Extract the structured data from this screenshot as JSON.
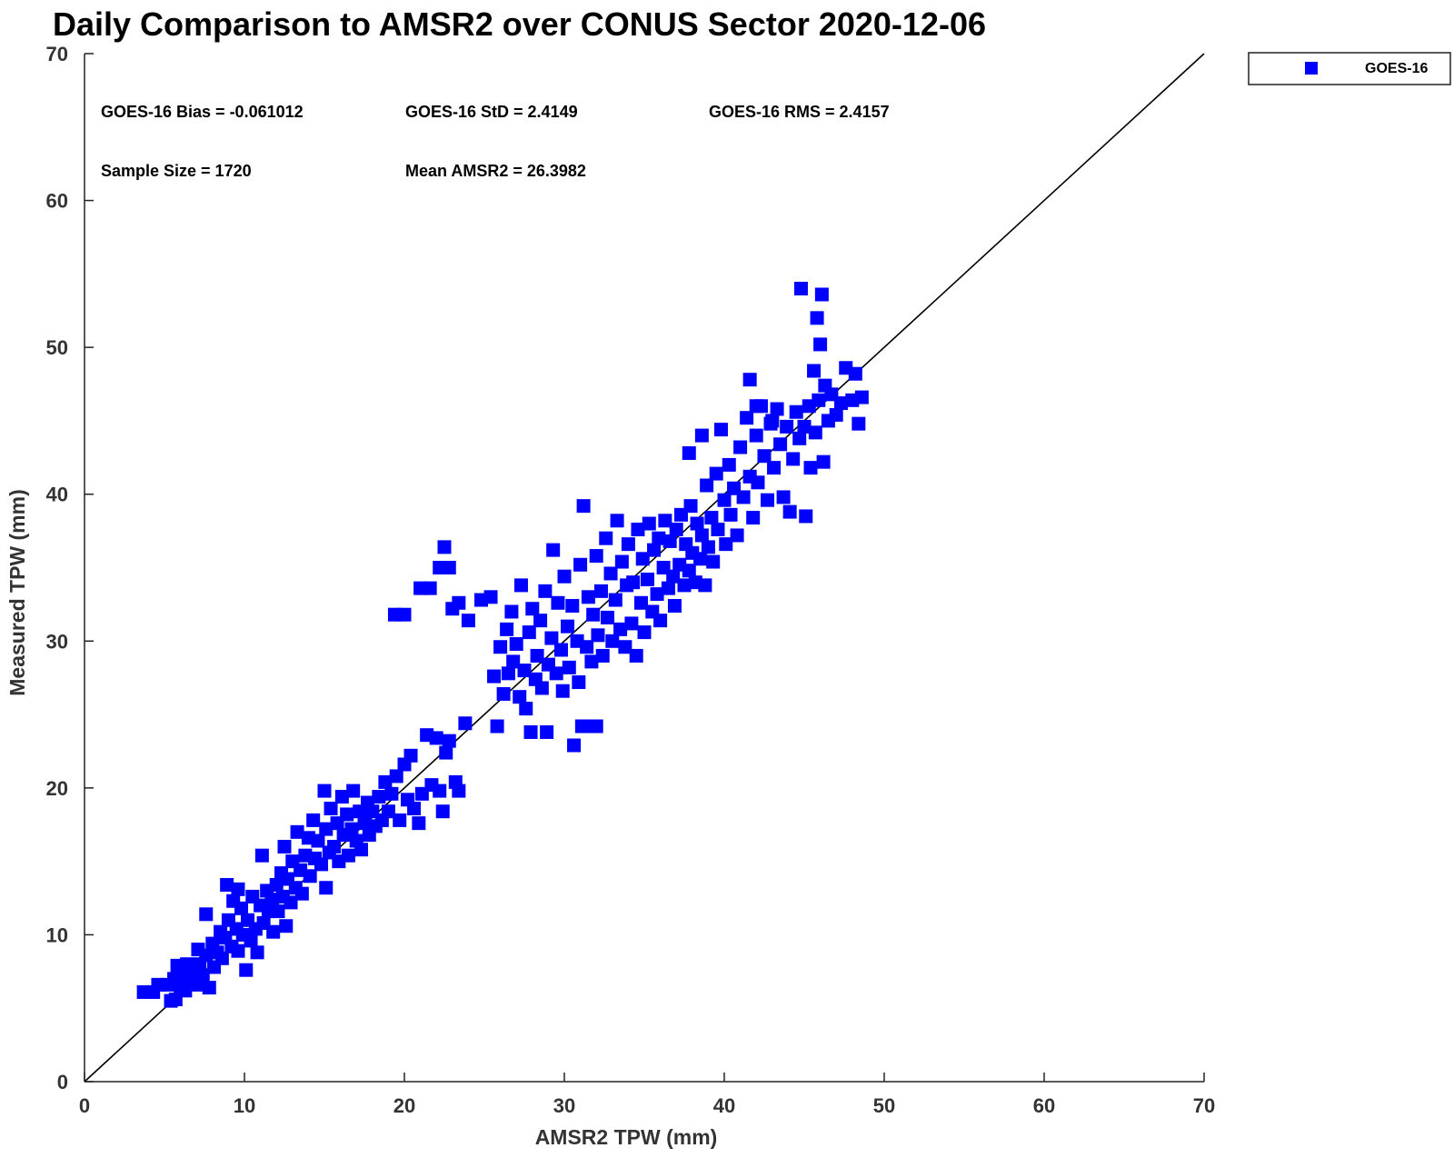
{
  "chart_data": {
    "type": "scatter",
    "title": "Daily Comparison to AMSR2 over CONUS Sector 2020-12-06",
    "xlabel": "AMSR2 TPW (mm)",
    "ylabel": "Measured TPW (mm)",
    "xlim": [
      0,
      70
    ],
    "ylim": [
      0,
      70
    ],
    "xticks": [
      "0",
      "10",
      "20",
      "30",
      "40",
      "50",
      "60",
      "70"
    ],
    "yticks": [
      "0",
      "10",
      "20",
      "30",
      "40",
      "50",
      "60",
      "70"
    ],
    "grid": false,
    "legend": {
      "position": "top-right",
      "entries": [
        "GOES-16"
      ]
    },
    "marker_color": "#0000ff",
    "reference_line": {
      "label": "1:1",
      "color": "#000000"
    },
    "annotations": {
      "bias": "GOES-16 Bias = -0.061012",
      "std": "GOES-16 StD = 2.4149",
      "rms": "GOES-16 RMS = 2.4157",
      "sample_size": "Sample Size = 1720",
      "mean": "Mean AMSR2 = 26.3982"
    },
    "series": [
      {
        "name": "GOES-16",
        "points": [
          [
            3.7,
            6.1
          ],
          [
            4.3,
            6.1
          ],
          [
            4.6,
            6.6
          ],
          [
            5.2,
            6.6
          ],
          [
            5.4,
            5.5
          ],
          [
            5.7,
            5.6
          ],
          [
            5.6,
            7.0
          ],
          [
            5.8,
            7.9
          ],
          [
            6.0,
            6.5
          ],
          [
            6.1,
            7.4
          ],
          [
            6.3,
            6.2
          ],
          [
            6.4,
            8.0
          ],
          [
            6.6,
            6.8
          ],
          [
            6.8,
            7.6
          ],
          [
            7.0,
            6.6
          ],
          [
            7.2,
            8.0
          ],
          [
            7.1,
            9.0
          ],
          [
            7.4,
            7.2
          ],
          [
            7.6,
            8.6
          ],
          [
            7.8,
            6.4
          ],
          [
            8.0,
            9.4
          ],
          [
            8.1,
            7.8
          ],
          [
            8.3,
            8.8
          ],
          [
            7.6,
            11.4
          ],
          [
            8.5,
            10.2
          ],
          [
            8.6,
            8.4
          ],
          [
            8.8,
            9.8
          ],
          [
            8.9,
            13.4
          ],
          [
            9.0,
            11.0
          ],
          [
            9.2,
            9.2
          ],
          [
            9.3,
            12.3
          ],
          [
            9.5,
            10.4
          ],
          [
            9.6,
            8.9
          ],
          [
            9.8,
            11.8
          ],
          [
            9.9,
            10.0
          ],
          [
            9.6,
            13.1
          ],
          [
            10.1,
            7.6
          ],
          [
            10.2,
            11.0
          ],
          [
            10.4,
            9.6
          ],
          [
            10.5,
            12.6
          ],
          [
            10.7,
            10.4
          ],
          [
            10.8,
            8.8
          ],
          [
            11.0,
            12.0
          ],
          [
            11.1,
            15.4
          ],
          [
            11.2,
            10.8
          ],
          [
            11.4,
            13.0
          ],
          [
            11.5,
            11.6
          ],
          [
            11.7,
            12.4
          ],
          [
            11.8,
            10.2
          ],
          [
            12.0,
            13.4
          ],
          [
            12.1,
            11.6
          ],
          [
            12.3,
            14.2
          ],
          [
            12.4,
            12.6
          ],
          [
            12.5,
            16.0
          ],
          [
            12.6,
            10.6
          ],
          [
            12.7,
            13.8
          ],
          [
            12.9,
            12.2
          ],
          [
            13.0,
            15.0
          ],
          [
            13.2,
            13.2
          ],
          [
            13.3,
            17.0
          ],
          [
            13.5,
            14.4
          ],
          [
            13.6,
            12.8
          ],
          [
            13.8,
            15.4
          ],
          [
            14.0,
            16.6
          ],
          [
            14.1,
            14.0
          ],
          [
            14.3,
            17.8
          ],
          [
            14.4,
            15.2
          ],
          [
            14.6,
            16.4
          ],
          [
            14.8,
            14.8
          ],
          [
            15.0,
            19.8
          ],
          [
            15.1,
            17.2
          ],
          [
            15.3,
            15.6
          ],
          [
            15.4,
            18.6
          ],
          [
            15.6,
            16.0
          ],
          [
            15.1,
            13.2
          ],
          [
            15.8,
            17.6
          ],
          [
            15.9,
            15.0
          ],
          [
            16.1,
            19.4
          ],
          [
            16.2,
            16.8
          ],
          [
            16.4,
            18.2
          ],
          [
            16.5,
            15.4
          ],
          [
            16.7,
            17.2
          ],
          [
            16.8,
            19.8
          ],
          [
            17.0,
            16.4
          ],
          [
            17.2,
            18.4
          ],
          [
            17.3,
            15.8
          ],
          [
            17.5,
            17.6
          ],
          [
            17.7,
            19.0
          ],
          [
            17.8,
            16.8
          ],
          [
            18.0,
            18.4
          ],
          [
            18.2,
            17.4
          ],
          [
            18.4,
            19.4
          ],
          [
            18.6,
            17.8
          ],
          [
            18.8,
            20.4
          ],
          [
            19.0,
            18.4
          ],
          [
            19.2,
            19.6
          ],
          [
            19.5,
            20.8
          ],
          [
            19.7,
            17.8
          ],
          [
            20.0,
            21.6
          ],
          [
            20.2,
            19.2
          ],
          [
            20.4,
            22.2
          ],
          [
            20.6,
            18.6
          ],
          [
            20.9,
            17.6
          ],
          [
            21.1,
            19.6
          ],
          [
            21.4,
            23.6
          ],
          [
            21.7,
            20.2
          ],
          [
            22.0,
            23.4
          ],
          [
            22.2,
            19.8
          ],
          [
            22.4,
            18.4
          ],
          [
            22.6,
            22.4
          ],
          [
            22.8,
            23.2
          ],
          [
            23.2,
            20.4
          ],
          [
            23.4,
            19.8
          ],
          [
            23.8,
            24.4
          ],
          [
            19.4,
            31.8
          ],
          [
            20.0,
            31.8
          ],
          [
            21.0,
            33.6
          ],
          [
            21.6,
            33.6
          ],
          [
            22.2,
            35.0
          ],
          [
            22.5,
            36.4
          ],
          [
            22.8,
            35.0
          ],
          [
            23.0,
            32.2
          ],
          [
            23.4,
            32.6
          ],
          [
            24.0,
            31.4
          ],
          [
            24.8,
            32.8
          ],
          [
            25.4,
            33.0
          ],
          [
            25.6,
            27.6
          ],
          [
            25.8,
            24.2
          ],
          [
            26.0,
            29.6
          ],
          [
            26.2,
            26.4
          ],
          [
            26.4,
            30.8
          ],
          [
            26.5,
            27.8
          ],
          [
            26.7,
            32.0
          ],
          [
            26.8,
            28.6
          ],
          [
            27.0,
            29.8
          ],
          [
            27.2,
            26.2
          ],
          [
            27.3,
            33.8
          ],
          [
            27.5,
            28.0
          ],
          [
            27.6,
            25.4
          ],
          [
            27.8,
            30.6
          ],
          [
            27.9,
            23.8
          ],
          [
            28.0,
            32.2
          ],
          [
            28.2,
            27.4
          ],
          [
            28.3,
            29.0
          ],
          [
            28.5,
            31.4
          ],
          [
            28.6,
            26.8
          ],
          [
            28.8,
            33.4
          ],
          [
            28.9,
            23.8
          ],
          [
            29.0,
            28.4
          ],
          [
            29.2,
            30.2
          ],
          [
            29.3,
            36.2
          ],
          [
            29.5,
            27.8
          ],
          [
            29.6,
            32.6
          ],
          [
            29.8,
            29.4
          ],
          [
            29.9,
            26.6
          ],
          [
            30.0,
            34.4
          ],
          [
            30.2,
            31.0
          ],
          [
            30.3,
            28.2
          ],
          [
            30.5,
            32.4
          ],
          [
            30.6,
            22.9
          ],
          [
            30.8,
            30.0
          ],
          [
            30.9,
            27.2
          ],
          [
            31.0,
            35.2
          ],
          [
            31.1,
            24.2
          ],
          [
            31.2,
            39.2
          ],
          [
            31.4,
            29.6
          ],
          [
            31.5,
            33.0
          ],
          [
            31.7,
            28.6
          ],
          [
            31.8,
            31.8
          ],
          [
            32.0,
            35.8
          ],
          [
            32.1,
            30.4
          ],
          [
            32.3,
            33.4
          ],
          [
            32.4,
            29.0
          ],
          [
            32.6,
            37.0
          ],
          [
            32.7,
            31.6
          ],
          [
            32.9,
            34.6
          ],
          [
            33.0,
            30.0
          ],
          [
            33.2,
            32.8
          ],
          [
            33.3,
            38.2
          ],
          [
            33.5,
            30.8
          ],
          [
            33.6,
            35.4
          ],
          [
            33.8,
            29.6
          ],
          [
            33.9,
            33.8
          ],
          [
            34.0,
            36.6
          ],
          [
            34.2,
            31.2
          ],
          [
            34.3,
            34.0
          ],
          [
            34.5,
            29.0
          ],
          [
            34.6,
            37.6
          ],
          [
            34.8,
            32.6
          ],
          [
            34.9,
            35.6
          ],
          [
            35.0,
            30.6
          ],
          [
            35.2,
            34.2
          ],
          [
            35.3,
            38.0
          ],
          [
            35.5,
            32.0
          ],
          [
            35.6,
            36.2
          ],
          [
            35.8,
            33.2
          ],
          [
            35.9,
            37.0
          ],
          [
            36.0,
            31.4
          ],
          [
            36.2,
            35.0
          ],
          [
            36.3,
            38.2
          ],
          [
            36.5,
            33.6
          ],
          [
            36.6,
            36.8
          ],
          [
            36.8,
            34.4
          ],
          [
            36.9,
            32.4
          ],
          [
            37.0,
            37.6
          ],
          [
            37.2,
            35.2
          ],
          [
            37.3,
            38.6
          ],
          [
            37.5,
            33.8
          ],
          [
            37.6,
            36.6
          ],
          [
            37.8,
            34.8
          ],
          [
            37.9,
            39.2
          ],
          [
            38.0,
            36.0
          ],
          [
            38.2,
            34.0
          ],
          [
            38.3,
            38.0
          ],
          [
            38.5,
            35.6
          ],
          [
            38.6,
            37.2
          ],
          [
            38.8,
            33.8
          ],
          [
            38.9,
            40.6
          ],
          [
            39.0,
            36.4
          ],
          [
            39.2,
            38.4
          ],
          [
            39.3,
            35.4
          ],
          [
            39.5,
            41.4
          ],
          [
            39.6,
            37.6
          ],
          [
            39.8,
            44.4
          ],
          [
            40.0,
            39.6
          ],
          [
            40.1,
            36.6
          ],
          [
            40.3,
            42.0
          ],
          [
            40.4,
            38.6
          ],
          [
            40.6,
            40.4
          ],
          [
            40.8,
            37.2
          ],
          [
            41.0,
            43.2
          ],
          [
            41.2,
            39.8
          ],
          [
            41.4,
            45.2
          ],
          [
            41.6,
            41.2
          ],
          [
            41.8,
            38.4
          ],
          [
            42.0,
            44.0
          ],
          [
            42.1,
            40.8
          ],
          [
            42.3,
            46.0
          ],
          [
            42.5,
            42.6
          ],
          [
            42.7,
            39.6
          ],
          [
            42.9,
            44.8
          ],
          [
            43.1,
            41.8
          ],
          [
            43.3,
            45.8
          ],
          [
            43.5,
            43.4
          ],
          [
            43.7,
            39.8
          ],
          [
            43.9,
            44.6
          ],
          [
            44.1,
            38.8
          ],
          [
            44.3,
            42.4
          ],
          [
            44.5,
            45.6
          ],
          [
            44.7,
            43.8
          ],
          [
            44.8,
            54.0
          ],
          [
            45.0,
            44.6
          ],
          [
            45.1,
            38.5
          ],
          [
            45.3,
            46.0
          ],
          [
            45.4,
            41.8
          ],
          [
            45.6,
            48.4
          ],
          [
            45.7,
            44.2
          ],
          [
            45.8,
            52.0
          ],
          [
            45.9,
            46.4
          ],
          [
            46.0,
            50.2
          ],
          [
            46.1,
            53.6
          ],
          [
            46.2,
            42.2
          ],
          [
            46.3,
            47.4
          ],
          [
            46.5,
            45.0
          ],
          [
            46.7,
            46.8
          ],
          [
            47.0,
            45.4
          ],
          [
            47.3,
            46.2
          ],
          [
            47.6,
            48.6
          ],
          [
            48.0,
            46.4
          ],
          [
            48.2,
            48.2
          ],
          [
            48.4,
            44.8
          ],
          [
            48.6,
            46.6
          ],
          [
            41.6,
            47.8
          ],
          [
            37.8,
            42.8
          ],
          [
            38.6,
            44.0
          ],
          [
            42.0,
            46.0
          ],
          [
            43.0,
            45.0
          ],
          [
            31.4,
            24.2
          ],
          [
            32.0,
            24.2
          ]
        ]
      }
    ]
  }
}
